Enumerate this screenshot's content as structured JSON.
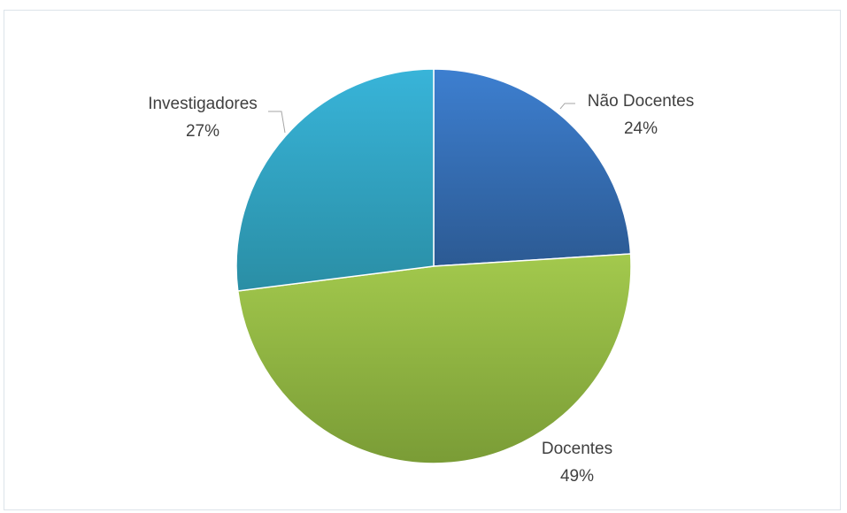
{
  "chart_data": {
    "type": "pie",
    "title": "",
    "slices": [
      {
        "label": "Não Docentes",
        "value": 24,
        "value_label": "24%",
        "color": "#3a6fb8"
      },
      {
        "label": "Docentes",
        "value": 49,
        "value_label": "49%",
        "color": "#94bb48"
      },
      {
        "label": "Investigadores",
        "value": 27,
        "value_label": "27%",
        "color": "#34a3c7"
      }
    ],
    "start_angle": "12 o'clock",
    "direction": "clockwise",
    "data_labels": "outside, category name and percentage",
    "legend": "none"
  }
}
